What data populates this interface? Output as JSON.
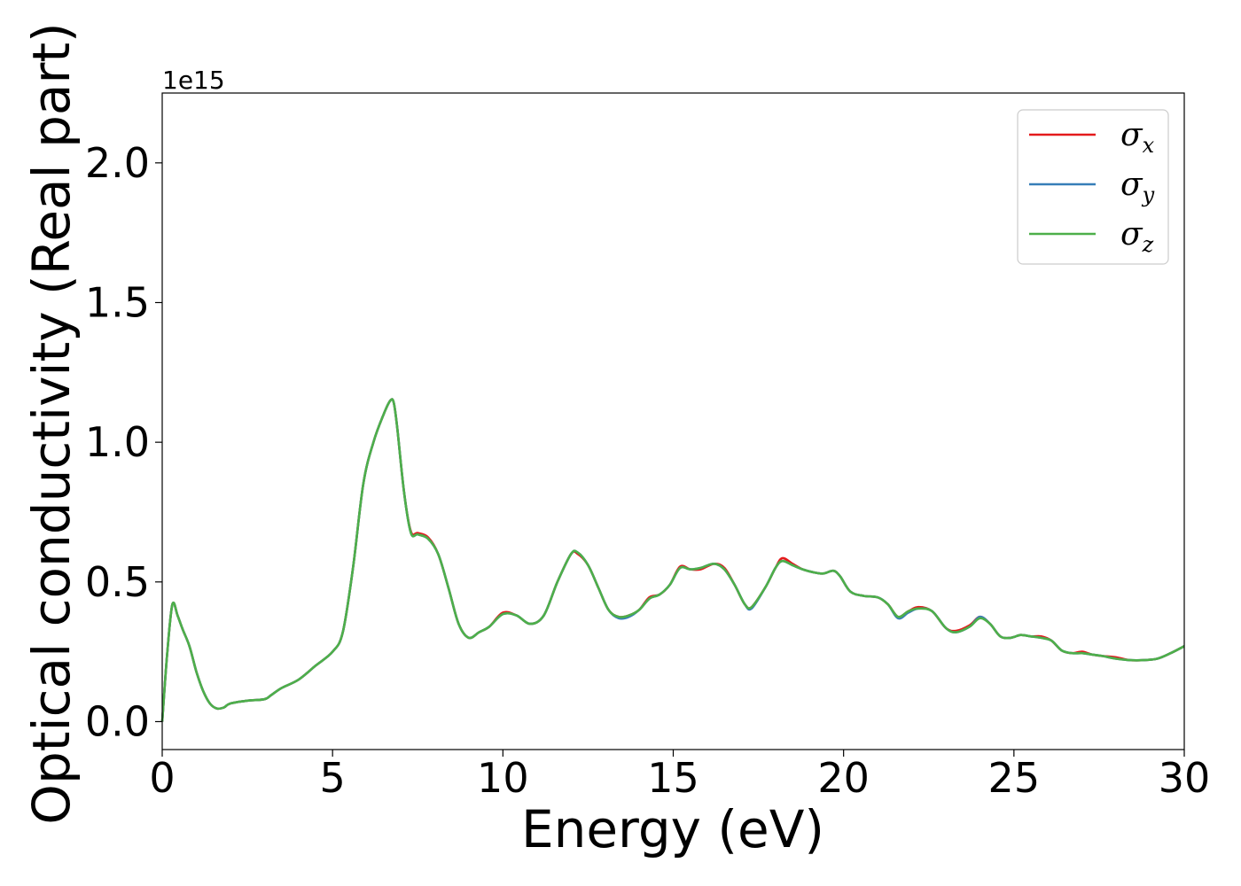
{
  "chart_data": {
    "type": "line",
    "title": "",
    "xlabel": "Energy (eV)",
    "ylabel": "Optical conductivity (Real part)",
    "y_offset_label": "1e15",
    "y_scale_factor": 1000000000000000.0,
    "xlim": [
      0,
      30
    ],
    "ylim": [
      -0.1,
      2.25
    ],
    "x_ticks": [
      0,
      5,
      10,
      15,
      20,
      25,
      30
    ],
    "x_tick_labels": [
      "0",
      "5",
      "10",
      "15",
      "20",
      "25",
      "30"
    ],
    "y_ticks": [
      0.0,
      0.5,
      1.0,
      1.5,
      2.0
    ],
    "y_tick_labels": [
      "0.0",
      "0.5",
      "1.0",
      "1.5",
      "2.0"
    ],
    "grid": false,
    "legend_position": "top-right",
    "x": [
      0,
      0.15,
      0.3,
      0.45,
      0.6,
      0.8,
      1.0,
      1.2,
      1.4,
      1.6,
      1.8,
      2.0,
      2.5,
      3.0,
      3.2,
      3.5,
      4.0,
      4.5,
      5.0,
      5.3,
      5.6,
      5.9,
      6.2,
      6.5,
      6.7,
      6.8,
      6.9,
      7.1,
      7.3,
      7.5,
      7.8,
      8.1,
      8.4,
      8.7,
      9.0,
      9.3,
      9.6,
      10.0,
      10.4,
      10.8,
      11.2,
      11.6,
      12.0,
      12.2,
      12.5,
      12.8,
      13.1,
      13.4,
      13.7,
      14.0,
      14.3,
      14.6,
      14.9,
      15.2,
      15.5,
      15.8,
      16.2,
      16.5,
      16.8,
      17.1,
      17.3,
      17.7,
      18.0,
      18.2,
      18.5,
      18.8,
      19.1,
      19.4,
      19.7,
      19.9,
      20.2,
      20.6,
      21.0,
      21.3,
      21.6,
      21.9,
      22.2,
      22.6,
      23.0,
      23.3,
      23.7,
      24.0,
      24.3,
      24.6,
      24.9,
      25.2,
      25.5,
      25.8,
      26.1,
      26.4,
      26.7,
      27.0,
      27.3,
      27.6,
      28.0,
      28.4,
      28.8,
      29.2,
      29.6,
      30.0
    ],
    "series": [
      {
        "name": "σx",
        "color": "#e41a1c",
        "values": [
          0.0,
          0.25,
          0.42,
          0.38,
          0.33,
          0.27,
          0.18,
          0.11,
          0.065,
          0.047,
          0.05,
          0.065,
          0.075,
          0.08,
          0.095,
          0.12,
          0.15,
          0.2,
          0.25,
          0.32,
          0.55,
          0.85,
          1.0,
          1.1,
          1.15,
          1.14,
          1.05,
          0.82,
          0.68,
          0.675,
          0.66,
          0.6,
          0.48,
          0.35,
          0.3,
          0.32,
          0.34,
          0.39,
          0.38,
          0.35,
          0.38,
          0.5,
          0.6,
          0.6,
          0.56,
          0.48,
          0.4,
          0.375,
          0.38,
          0.4,
          0.445,
          0.455,
          0.49,
          0.555,
          0.545,
          0.545,
          0.565,
          0.55,
          0.49,
          0.42,
          0.41,
          0.48,
          0.55,
          0.585,
          0.565,
          0.545,
          0.535,
          0.53,
          0.54,
          0.52,
          0.465,
          0.45,
          0.445,
          0.42,
          0.375,
          0.395,
          0.41,
          0.395,
          0.335,
          0.325,
          0.345,
          0.375,
          0.35,
          0.305,
          0.3,
          0.31,
          0.305,
          0.305,
          0.29,
          0.255,
          0.245,
          0.25,
          0.24,
          0.235,
          0.23,
          0.22,
          0.22,
          0.225,
          0.245,
          0.27
        ]
      },
      {
        "name": "σy",
        "color": "#377eb8",
        "values": [
          0.0,
          0.25,
          0.42,
          0.38,
          0.33,
          0.27,
          0.18,
          0.11,
          0.065,
          0.047,
          0.05,
          0.065,
          0.075,
          0.08,
          0.095,
          0.12,
          0.15,
          0.2,
          0.25,
          0.32,
          0.55,
          0.85,
          1.0,
          1.1,
          1.15,
          1.14,
          1.05,
          0.82,
          0.675,
          0.67,
          0.655,
          0.6,
          0.48,
          0.35,
          0.3,
          0.32,
          0.34,
          0.385,
          0.38,
          0.35,
          0.38,
          0.5,
          0.6,
          0.605,
          0.56,
          0.48,
          0.4,
          0.37,
          0.375,
          0.4,
          0.44,
          0.455,
          0.49,
          0.55,
          0.545,
          0.55,
          0.565,
          0.545,
          0.49,
          0.42,
          0.405,
          0.48,
          0.55,
          0.575,
          0.56,
          0.545,
          0.535,
          0.53,
          0.54,
          0.52,
          0.465,
          0.45,
          0.445,
          0.42,
          0.37,
          0.39,
          0.405,
          0.395,
          0.335,
          0.32,
          0.34,
          0.375,
          0.35,
          0.305,
          0.3,
          0.31,
          0.305,
          0.3,
          0.29,
          0.255,
          0.245,
          0.245,
          0.24,
          0.235,
          0.225,
          0.22,
          0.22,
          0.225,
          0.245,
          0.27
        ]
      },
      {
        "name": "σz",
        "color": "#4daf4a",
        "values": [
          0.0,
          0.25,
          0.42,
          0.38,
          0.33,
          0.27,
          0.18,
          0.11,
          0.065,
          0.047,
          0.05,
          0.065,
          0.075,
          0.08,
          0.095,
          0.12,
          0.15,
          0.2,
          0.25,
          0.32,
          0.55,
          0.85,
          1.0,
          1.1,
          1.15,
          1.14,
          1.05,
          0.82,
          0.675,
          0.67,
          0.655,
          0.6,
          0.48,
          0.35,
          0.3,
          0.32,
          0.34,
          0.385,
          0.38,
          0.35,
          0.38,
          0.5,
          0.6,
          0.605,
          0.56,
          0.48,
          0.4,
          0.375,
          0.38,
          0.4,
          0.44,
          0.455,
          0.49,
          0.55,
          0.545,
          0.55,
          0.565,
          0.545,
          0.49,
          0.42,
          0.41,
          0.48,
          0.55,
          0.575,
          0.56,
          0.545,
          0.535,
          0.53,
          0.54,
          0.52,
          0.465,
          0.45,
          0.445,
          0.42,
          0.375,
          0.395,
          0.405,
          0.395,
          0.335,
          0.32,
          0.34,
          0.37,
          0.35,
          0.305,
          0.3,
          0.31,
          0.305,
          0.3,
          0.29,
          0.255,
          0.245,
          0.245,
          0.24,
          0.235,
          0.225,
          0.22,
          0.22,
          0.225,
          0.245,
          0.27
        ]
      }
    ],
    "legend": [
      {
        "symbol": "σ",
        "subscript": "x",
        "color": "#e41a1c"
      },
      {
        "symbol": "σ",
        "subscript": "y",
        "color": "#377eb8"
      },
      {
        "symbol": "σ",
        "subscript": "z",
        "color": "#4daf4a"
      }
    ]
  }
}
